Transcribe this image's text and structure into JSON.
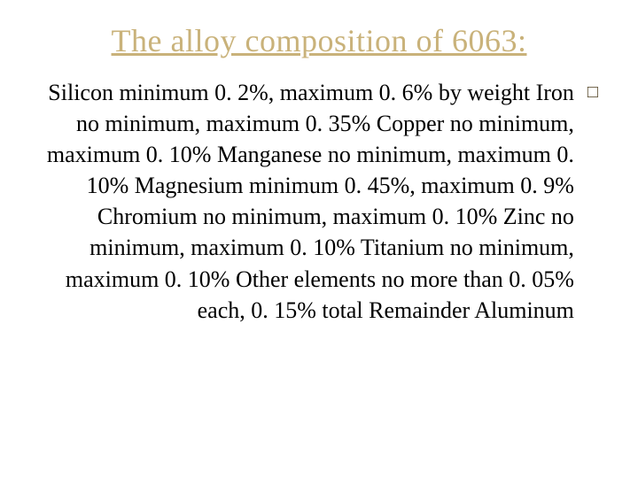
{
  "slide": {
    "title": "The alloy composition of 6063:",
    "body_text": "Silicon minimum 0. 2%, maximum 0. 6% by weight Iron no minimum, maximum 0. 35% Copper no minimum, maximum 0. 10% Manganese no minimum, maximum 0. 10% Magnesium minimum 0. 45%, maximum 0. 9% Chromium no minimum, maximum 0. 10% Zinc no minimum, maximum 0. 10% Titanium no minimum, maximum 0. 10% Other elements no more than 0. 05% each, 0. 15% total Remainder Aluminum",
    "bullet_glyph": "□"
  },
  "styling": {
    "title_color": "#c9b27a",
    "title_fontsize": 36,
    "body_fontsize": 26,
    "body_color": "#000000",
    "background_color": "#ffffff",
    "bullet_color": "#4a3a1a",
    "font_family": "Times New Roman",
    "text_align": "right"
  }
}
